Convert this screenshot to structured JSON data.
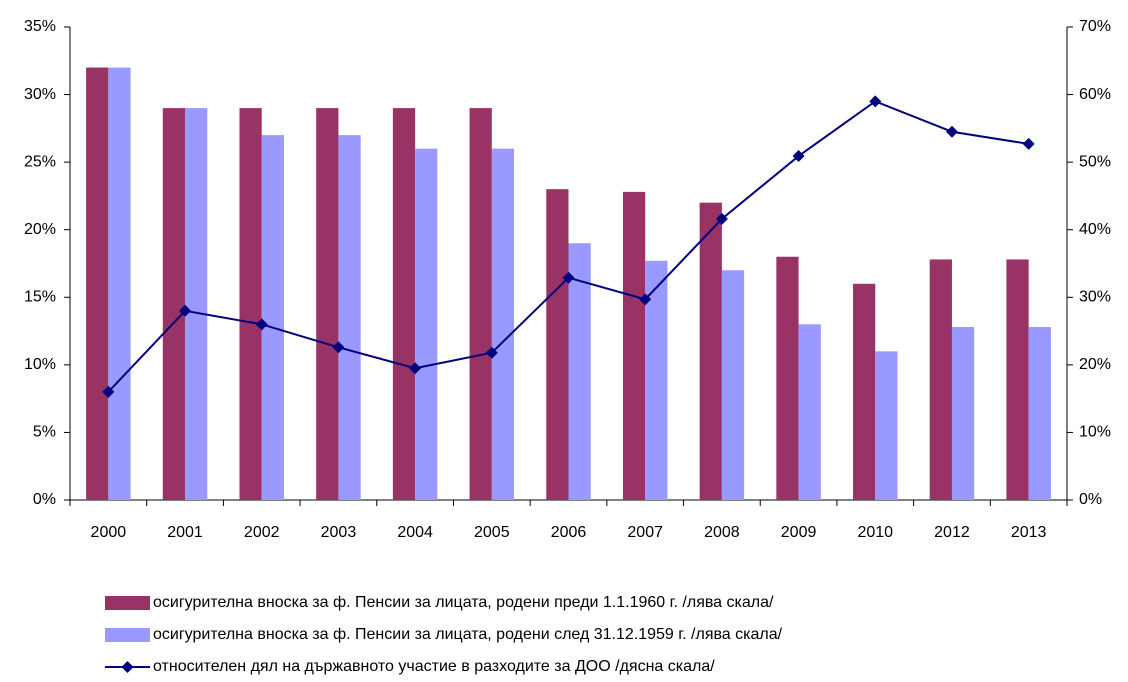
{
  "chart_data": {
    "type": "bar",
    "categories": [
      "2000",
      "2001",
      "2002",
      "2003",
      "2004",
      "2005",
      "2006",
      "2007",
      "2008",
      "2009",
      "2010",
      "2012",
      "2013"
    ],
    "series": [
      {
        "name": "осигурителна вноска за ф. Пенсии за лицата, родени преди 1.1.1960 г. /лява скала/",
        "color": "#993366",
        "type": "bar",
        "values": [
          32,
          29,
          29,
          29,
          29,
          29,
          23,
          22.8,
          22,
          18,
          16,
          17.8,
          17.8
        ]
      },
      {
        "name": "осигурителна вноска за ф. Пенсии за лицата, родени след 31.12.1959 г. /лява скала/",
        "color": "#9999ff",
        "type": "bar",
        "values": [
          32,
          29,
          27,
          27,
          26,
          26,
          19,
          17.7,
          17,
          13,
          11,
          12.8,
          12.8
        ]
      },
      {
        "name": "относителен дял на държавното участие в разходите за ДОО /дясна скала/",
        "color": "#000080",
        "type": "line",
        "axis": "y2",
        "values": [
          16,
          28,
          26,
          22.6,
          19.5,
          21.8,
          32.9,
          29.7,
          41.6,
          50.9,
          59,
          54.5,
          52.7
        ]
      }
    ],
    "ylim": [
      0,
      35
    ],
    "yticks": [
      {
        "value": 0,
        "label": "0%"
      },
      {
        "value": 5,
        "label": "5%"
      },
      {
        "value": 10,
        "label": "10%"
      },
      {
        "value": 15,
        "label": "15%"
      },
      {
        "value": 20,
        "label": "20%"
      },
      {
        "value": 25,
        "label": "25%"
      },
      {
        "value": 30,
        "label": "30%"
      },
      {
        "value": 35,
        "label": "35%"
      }
    ],
    "y2lim": [
      0,
      70
    ],
    "y2ticks": [
      {
        "value": 0,
        "label": "0%"
      },
      {
        "value": 10,
        "label": "10%"
      },
      {
        "value": 20,
        "label": "20%"
      },
      {
        "value": 30,
        "label": "30%"
      },
      {
        "value": 40,
        "label": "40%"
      },
      {
        "value": 50,
        "label": "50%"
      },
      {
        "value": 60,
        "label": "60%"
      },
      {
        "value": 70,
        "label": "70%"
      }
    ],
    "legend": "bottom"
  }
}
